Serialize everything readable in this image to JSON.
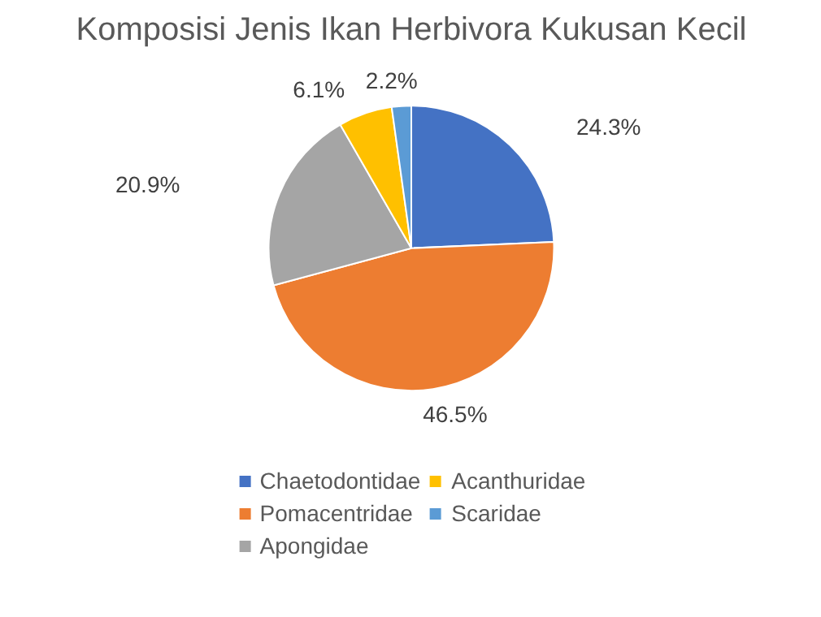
{
  "chart_data": {
    "type": "pie",
    "title": "Komposisi Jenis Ikan Herbivora Kukusan Kecil",
    "categories": [
      "Chaetodontidae",
      "Pomacentridae",
      "Apongidae",
      "Acanthuridae",
      "Scaridae"
    ],
    "values": [
      24.3,
      46.5,
      20.9,
      6.1,
      2.2
    ],
    "colors": [
      "#4472c4",
      "#ed7d31",
      "#a5a5a5",
      "#ffc000",
      "#5b9bd5"
    ],
    "value_labels": [
      "24.3%",
      "46.5%",
      "20.9%",
      "6.1%",
      "2.2%"
    ],
    "legend": "bottom"
  }
}
